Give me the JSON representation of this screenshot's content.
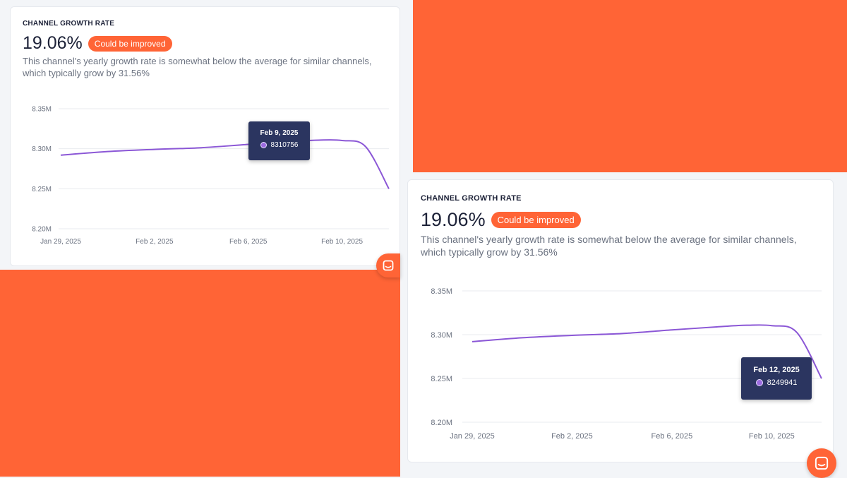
{
  "colors": {
    "accent": "#ff6436",
    "line": "#8b57d6",
    "tooltip_bg": "#2b3560",
    "text_dark": "#1d2238",
    "text_muted": "#6b7280"
  },
  "card_left": {
    "title": "CHANNEL GROWTH RATE",
    "metric": "19.06%",
    "badge": "Could be improved",
    "description_line1": "This channel's yearly growth rate is somewhat below the average for similar channels,",
    "description_line2": "which typically grow by 31.56%",
    "tooltip": {
      "date": "Feb 9, 2025",
      "value": "8310756"
    },
    "chart_data": {
      "type": "line",
      "x": [
        "Jan 29, 2025",
        "Jan 31, 2025",
        "Feb 2, 2025",
        "Feb 4, 2025",
        "Feb 6, 2025",
        "Feb 8, 2025",
        "Feb 9, 2025",
        "Feb 10, 2025",
        "Feb 11, 2025",
        "Feb 12, 2025"
      ],
      "y": [
        8292000,
        8296500,
        8299200,
        8301300,
        8305400,
        8309300,
        8310756,
        8310300,
        8302800,
        8249941
      ],
      "x_tick_labels": [
        "Jan 29, 2025",
        "Feb 2, 2025",
        "Feb 6, 2025",
        "Feb 10, 2025"
      ],
      "y_tick_labels": [
        "8.20M",
        "8.25M",
        "8.30M",
        "8.35M"
      ],
      "ylim": [
        8200000,
        8350000
      ],
      "grid": true
    }
  },
  "card_right": {
    "title": "CHANNEL GROWTH RATE",
    "metric": "19.06%",
    "badge": "Could be improved",
    "description_line1": "This channel's yearly growth rate is somewhat below the average for similar channels,",
    "description_line2": "which typically grow by 31.56%",
    "tooltip": {
      "date": "Feb 12, 2025",
      "value": "8249941"
    },
    "chart_data": {
      "type": "line",
      "x": [
        "Jan 29, 2025",
        "Jan 31, 2025",
        "Feb 2, 2025",
        "Feb 4, 2025",
        "Feb 6, 2025",
        "Feb 8, 2025",
        "Feb 9, 2025",
        "Feb 10, 2025",
        "Feb 11, 2025",
        "Feb 12, 2025"
      ],
      "y": [
        8292000,
        8296500,
        8299200,
        8301300,
        8305400,
        8309300,
        8310756,
        8310300,
        8302800,
        8249941
      ],
      "x_tick_labels": [
        "Jan 29, 2025",
        "Feb 2, 2025",
        "Feb 6, 2025",
        "Feb 10, 2025"
      ],
      "y_tick_labels": [
        "8.20M",
        "8.25M",
        "8.30M",
        "8.35M"
      ],
      "ylim": [
        8200000,
        8350000
      ],
      "grid": true
    }
  },
  "chat_button_icon": "chat-icon"
}
